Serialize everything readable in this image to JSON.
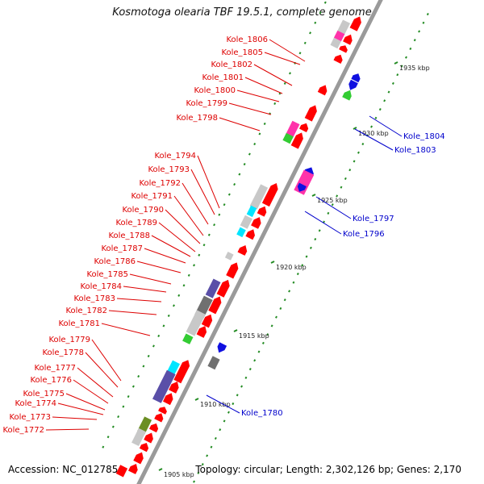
{
  "title": "Kosmotoga olearia TBF 19.5.1, complete genome",
  "footer": {
    "accession": "Accession: NC_012785",
    "summary": "Topology: circular; Length: 2,302,126 bp; Genes: 2,170"
  },
  "kbp_labels": [
    "1935 kbp",
    "1930 kbp",
    "1925 kbp",
    "1920 kbp",
    "1915 kbp",
    "1910 kbp",
    "1905 kbp"
  ],
  "left_genes": [
    "Kole_1806",
    "Kole_1805",
    "Kole_1802",
    "Kole_1801",
    "Kole_1800",
    "Kole_1799",
    "Kole_1798",
    "Kole_1794",
    "Kole_1793",
    "Kole_1792",
    "Kole_1791",
    "Kole_1790",
    "Kole_1789",
    "Kole_1788",
    "Kole_1787",
    "Kole_1786",
    "Kole_1785",
    "Kole_1784",
    "Kole_1783",
    "Kole_1782",
    "Kole_1781",
    "Kole_1779",
    "Kole_1778",
    "Kole_1777",
    "Kole_1776",
    "Kole_1775",
    "Kole_1774",
    "Kole_1773",
    "Kole_1772"
  ],
  "right_genes": [
    "Kole_1804",
    "Kole_1803",
    "Kole_1797",
    "Kole_1796",
    "Kole_1780"
  ],
  "colors": {
    "backbone": "#9a9a9a",
    "left_label": "#dd0000",
    "right_label": "#0000cc",
    "tick": "#228b22",
    "red": "#ff0000",
    "blue": "#1010e0",
    "magenta": "#ff33aa",
    "green": "#33cc33",
    "cyan": "#00e5ff",
    "gray": "#c8c8c8",
    "darkgray": "#707070",
    "purple": "#5a4fa8",
    "olive": "#6b8e23"
  }
}
